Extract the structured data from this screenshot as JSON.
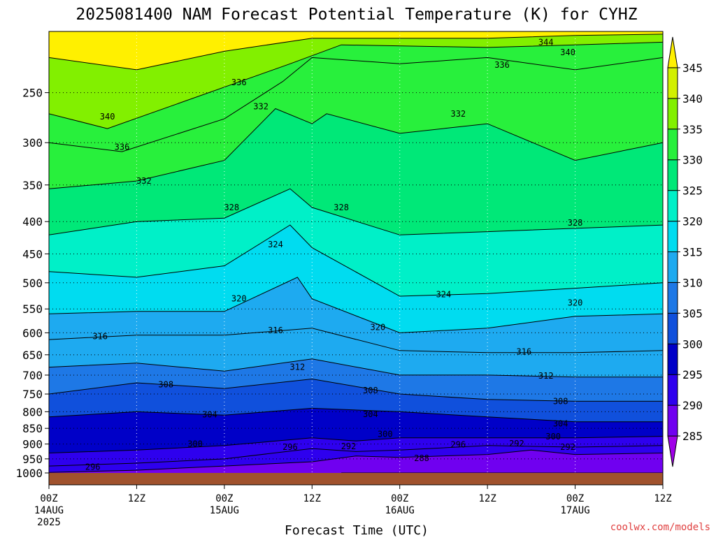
{
  "chart_data": {
    "type": "heatmap",
    "title": "2025081400 NAM Forecast Potential Temperature (K) for CYHZ",
    "xlabel": "Forecast Time (UTC)",
    "ylabel": "",
    "credit": "coolwx.com/models",
    "y_scale": "log-pressure",
    "y_ticks": [
      250,
      300,
      350,
      400,
      450,
      500,
      550,
      600,
      650,
      700,
      750,
      800,
      850,
      900,
      950,
      1000
    ],
    "y_range": [
      1030,
      200
    ],
    "x_range": [
      0,
      84
    ],
    "x_ticks": [
      {
        "hour": 0,
        "label": "00Z",
        "label2": "14AUG",
        "label3": "2025"
      },
      {
        "hour": 12,
        "label": "12Z",
        "label2": "",
        "label3": ""
      },
      {
        "hour": 24,
        "label": "00Z",
        "label2": "15AUG",
        "label3": ""
      },
      {
        "hour": 36,
        "label": "12Z",
        "label2": "",
        "label3": ""
      },
      {
        "hour": 48,
        "label": "00Z",
        "label2": "16AUG",
        "label3": ""
      },
      {
        "hour": 60,
        "label": "12Z",
        "label2": "",
        "label3": ""
      },
      {
        "hour": 72,
        "label": "00Z",
        "label2": "17AUG",
        "label3": ""
      },
      {
        "hour": 84,
        "label": "12Z",
        "label2": "",
        "label3": ""
      }
    ],
    "colorbar": {
      "levels": [
        285,
        290,
        295,
        300,
        305,
        310,
        315,
        320,
        325,
        330,
        335,
        340,
        345
      ],
      "colors": [
        "#a000e8",
        "#7000f0",
        "#2e00ee",
        "#0000c8",
        "#1050dc",
        "#1e78e6",
        "#1eaaf0",
        "#00dcf0",
        "#00f0c8",
        "#00e878",
        "#28f03c",
        "#82f000",
        "#d2f000",
        "#fff000"
      ],
      "extend": "both"
    },
    "ground_color": "#a0522d",
    "contour_interval": 4,
    "series": [
      {
        "name": "288",
        "values": [
          [
            40,
            1000
          ],
          [
            84,
            1000
          ]
        ]
      },
      {
        "name": "292",
        "values": [
          [
            0,
            998
          ],
          [
            12,
            990
          ],
          [
            24,
            975
          ],
          [
            36,
            960
          ],
          [
            42,
            940
          ],
          [
            48,
            945
          ],
          [
            60,
            935
          ],
          [
            66,
            920
          ],
          [
            72,
            935
          ],
          [
            84,
            930
          ]
        ]
      },
      {
        "name": "296",
        "values": [
          [
            0,
            975
          ],
          [
            12,
            965
          ],
          [
            24,
            950
          ],
          [
            36,
            915
          ],
          [
            42,
            925
          ],
          [
            48,
            920
          ],
          [
            60,
            905
          ],
          [
            72,
            910
          ],
          [
            84,
            905
          ]
        ]
      },
      {
        "name": "300",
        "values": [
          [
            0,
            930
          ],
          [
            12,
            920
          ],
          [
            24,
            905
          ],
          [
            36,
            880
          ],
          [
            42,
            890
          ],
          [
            48,
            880
          ],
          [
            60,
            880
          ],
          [
            72,
            880
          ],
          [
            84,
            875
          ]
        ]
      },
      {
        "name": "304",
        "values": [
          [
            0,
            815
          ],
          [
            12,
            800
          ],
          [
            24,
            810
          ],
          [
            36,
            790
          ],
          [
            48,
            800
          ],
          [
            60,
            815
          ],
          [
            72,
            830
          ],
          [
            84,
            830
          ]
        ]
      },
      {
        "name": "308",
        "values": [
          [
            0,
            750
          ],
          [
            12,
            720
          ],
          [
            24,
            735
          ],
          [
            36,
            710
          ],
          [
            48,
            750
          ],
          [
            60,
            765
          ],
          [
            72,
            770
          ],
          [
            84,
            770
          ]
        ]
      },
      {
        "name": "312",
        "values": [
          [
            0,
            680
          ],
          [
            12,
            670
          ],
          [
            24,
            690
          ],
          [
            36,
            660
          ],
          [
            48,
            700
          ],
          [
            60,
            700
          ],
          [
            72,
            705
          ],
          [
            84,
            705
          ]
        ]
      },
      {
        "name": "316",
        "values": [
          [
            0,
            615
          ],
          [
            12,
            605
          ],
          [
            24,
            605
          ],
          [
            36,
            590
          ],
          [
            48,
            640
          ],
          [
            60,
            645
          ],
          [
            72,
            645
          ],
          [
            84,
            640
          ]
        ]
      },
      {
        "name": "320",
        "values": [
          [
            0,
            560
          ],
          [
            12,
            555
          ],
          [
            24,
            555
          ],
          [
            34,
            490
          ],
          [
            36,
            530
          ],
          [
            48,
            600
          ],
          [
            60,
            590
          ],
          [
            72,
            565
          ],
          [
            84,
            560
          ]
        ]
      },
      {
        "name": "324",
        "values": [
          [
            0,
            480
          ],
          [
            12,
            490
          ],
          [
            24,
            470
          ],
          [
            33,
            405
          ],
          [
            36,
            440
          ],
          [
            48,
            525
          ],
          [
            60,
            520
          ],
          [
            72,
            510
          ],
          [
            84,
            500
          ]
        ]
      },
      {
        "name": "328",
        "values": [
          [
            0,
            420
          ],
          [
            12,
            400
          ],
          [
            24,
            395
          ],
          [
            33,
            355
          ],
          [
            36,
            380
          ],
          [
            48,
            420
          ],
          [
            60,
            415
          ],
          [
            72,
            410
          ],
          [
            84,
            405
          ]
        ]
      },
      {
        "name": "332",
        "values": [
          [
            0,
            355
          ],
          [
            12,
            345
          ],
          [
            24,
            320
          ],
          [
            31,
            265
          ],
          [
            36,
            280
          ],
          [
            38,
            270
          ],
          [
            48,
            290
          ],
          [
            60,
            280
          ],
          [
            72,
            320
          ],
          [
            84,
            300
          ]
        ]
      },
      {
        "name": "336",
        "values": [
          [
            0,
            300
          ],
          [
            10,
            310
          ],
          [
            24,
            275
          ],
          [
            32,
            240
          ],
          [
            36,
            220
          ],
          [
            48,
            225
          ],
          [
            60,
            220
          ],
          [
            72,
            230
          ],
          [
            84,
            220
          ]
        ]
      },
      {
        "name": "340",
        "values": [
          [
            0,
            270
          ],
          [
            8,
            285
          ],
          [
            24,
            245
          ],
          [
            33,
            225
          ],
          [
            40,
            210
          ],
          [
            60,
            212
          ],
          [
            72,
            210
          ],
          [
            84,
            208
          ]
        ]
      },
      {
        "name": "344",
        "values": [
          [
            0,
            220
          ],
          [
            12,
            230
          ],
          [
            24,
            215
          ],
          [
            36,
            205
          ],
          [
            60,
            205
          ],
          [
            72,
            203
          ],
          [
            84,
            202
          ]
        ]
      }
    ],
    "contour_labels": [
      {
        "text": "344",
        "x": 68,
        "p": 208
      },
      {
        "text": "340",
        "x": 71,
        "p": 216
      },
      {
        "text": "336",
        "x": 62,
        "p": 226
      },
      {
        "text": "336",
        "x": 26,
        "p": 241
      },
      {
        "text": "332",
        "x": 29,
        "p": 263
      },
      {
        "text": "332",
        "x": 56,
        "p": 270
      },
      {
        "text": "340",
        "x": 8,
        "p": 273
      },
      {
        "text": "336",
        "x": 10,
        "p": 305
      },
      {
        "text": "332",
        "x": 13,
        "p": 345
      },
      {
        "text": "328",
        "x": 25,
        "p": 380
      },
      {
        "text": "328",
        "x": 40,
        "p": 380
      },
      {
        "text": "328",
        "x": 72,
        "p": 402
      },
      {
        "text": "324",
        "x": 31,
        "p": 435
      },
      {
        "text": "324",
        "x": 54,
        "p": 522
      },
      {
        "text": "320",
        "x": 26,
        "p": 530
      },
      {
        "text": "320",
        "x": 72,
        "p": 538
      },
      {
        "text": "320",
        "x": 45,
        "p": 588
      },
      {
        "text": "316",
        "x": 7,
        "p": 608
      },
      {
        "text": "316",
        "x": 31,
        "p": 595
      },
      {
        "text": "316",
        "x": 65,
        "p": 643
      },
      {
        "text": "312",
        "x": 34,
        "p": 680
      },
      {
        "text": "312",
        "x": 68,
        "p": 702
      },
      {
        "text": "308",
        "x": 16,
        "p": 725
      },
      {
        "text": "308",
        "x": 44,
        "p": 740
      },
      {
        "text": "308",
        "x": 70,
        "p": 770
      },
      {
        "text": "304",
        "x": 22,
        "p": 808
      },
      {
        "text": "304",
        "x": 44,
        "p": 807
      },
      {
        "text": "304",
        "x": 70,
        "p": 836
      },
      {
        "text": "300",
        "x": 46,
        "p": 868
      },
      {
        "text": "300",
        "x": 69,
        "p": 876
      },
      {
        "text": "300",
        "x": 20,
        "p": 900
      },
      {
        "text": "296",
        "x": 33,
        "p": 910
      },
      {
        "text": "296",
        "x": 56,
        "p": 902
      },
      {
        "text": "292",
        "x": 41,
        "p": 908
      },
      {
        "text": "292",
        "x": 64,
        "p": 898
      },
      {
        "text": "292",
        "x": 71,
        "p": 910
      },
      {
        "text": "288",
        "x": 51,
        "p": 948
      },
      {
        "text": "296",
        "x": 6,
        "p": 978
      }
    ]
  }
}
